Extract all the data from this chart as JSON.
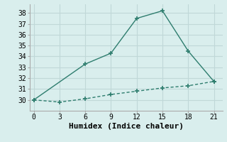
{
  "xlabel": "Humidex (Indice chaleur)",
  "background_color": "#d9eeed",
  "grid_color": "#c0d8d8",
  "line_color": "#2e7d6e",
  "xlim": [
    -0.5,
    22
  ],
  "ylim": [
    29.0,
    38.8
  ],
  "xticks": [
    0,
    3,
    6,
    9,
    12,
    15,
    18,
    21
  ],
  "yticks": [
    30,
    31,
    32,
    33,
    34,
    35,
    36,
    37,
    38
  ],
  "line1_x": [
    0,
    6,
    9,
    12,
    15,
    18,
    21
  ],
  "line1_y": [
    30.0,
    33.3,
    34.3,
    37.5,
    38.2,
    34.5,
    31.7
  ],
  "line2_x": [
    0,
    3,
    6,
    9,
    12,
    15,
    18,
    21
  ],
  "line2_y": [
    30.0,
    29.8,
    30.1,
    30.5,
    30.8,
    31.1,
    31.3,
    31.7
  ],
  "marker": "+",
  "markersize": 5,
  "markeredgewidth": 1.2,
  "linewidth": 1.0,
  "xlabel_fontsize": 8,
  "tick_fontsize": 7,
  "font_family": "monospace"
}
